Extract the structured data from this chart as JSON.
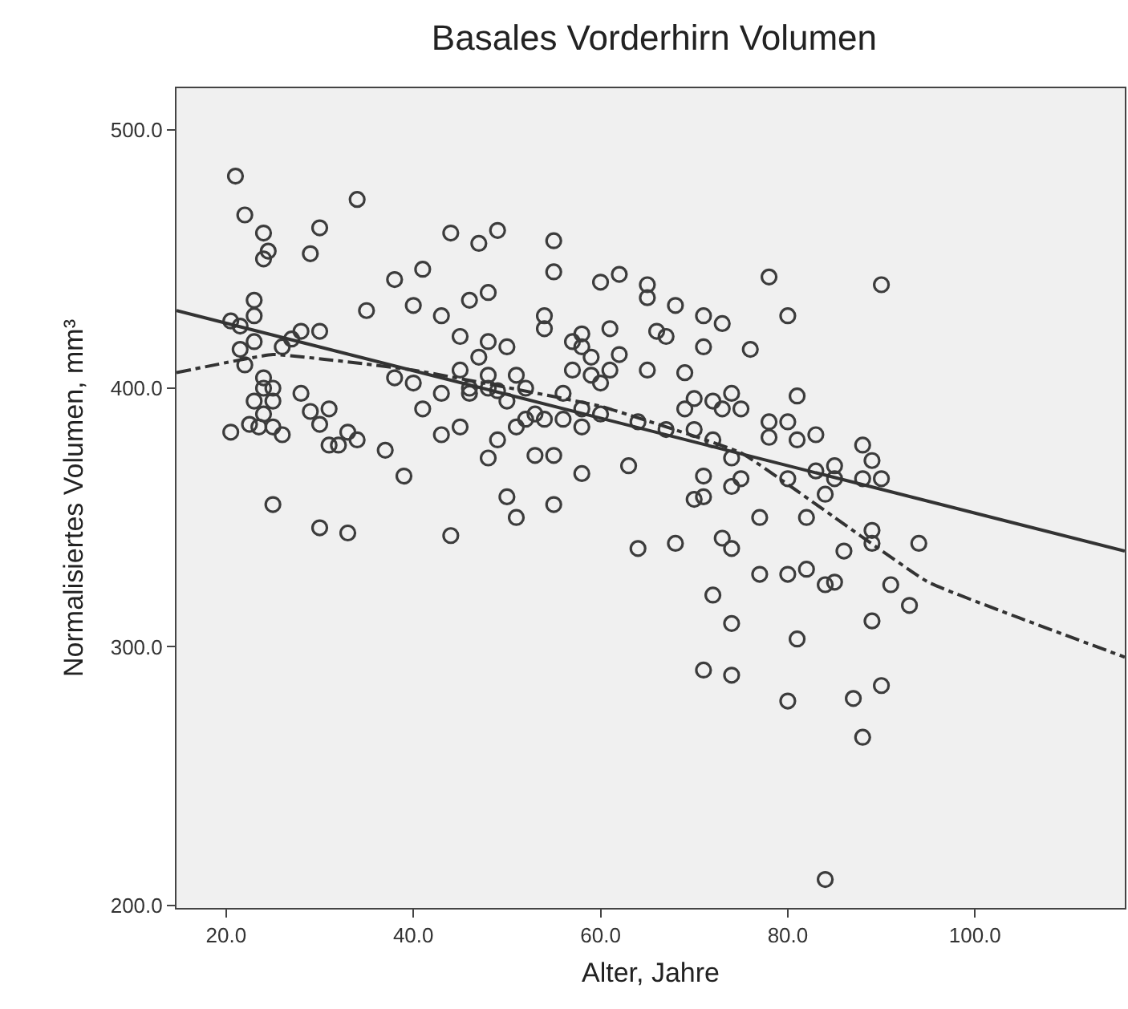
{
  "chart_data": {
    "type": "scatter",
    "title": "Basales Vorderhirn Volumen",
    "xlabel": "Alter, Jahre",
    "ylabel": "Normalisiertes Volumen, mm³",
    "xlim": [
      14.7,
      116
    ],
    "ylim": [
      199,
      516
    ],
    "xticks": [
      {
        "value": 20,
        "label": "20.0"
      },
      {
        "value": 40,
        "label": "40.0"
      },
      {
        "value": 60,
        "label": "60.0"
      },
      {
        "value": 80,
        "label": "80.0"
      },
      {
        "value": 100,
        "label": "100.0"
      }
    ],
    "yticks": [
      {
        "value": 200,
        "label": "200.0"
      },
      {
        "value": 300,
        "label": "300.0"
      },
      {
        "value": 400,
        "label": "400.0"
      },
      {
        "value": 500,
        "label": "500.0"
      }
    ],
    "grid": false,
    "series": [
      {
        "color": "#3c3c3c",
        "marker": "circle",
        "x": [
          20.5,
          20.5,
          21,
          21.5,
          21.5,
          22,
          22,
          22.5,
          23,
          23,
          23,
          23,
          23.5,
          24,
          24,
          24,
          24,
          24,
          24.5,
          25,
          25,
          25,
          25,
          26,
          26,
          27,
          28,
          28,
          29,
          29,
          30,
          30,
          30,
          30,
          31,
          31,
          32,
          33,
          33,
          34,
          34,
          35,
          37,
          38,
          38,
          39,
          40,
          40,
          41,
          41,
          43,
          43,
          43,
          44,
          44,
          45,
          45,
          45,
          46,
          46,
          46,
          47,
          47,
          48,
          48,
          48,
          48,
          48,
          49,
          49,
          49,
          50,
          50,
          50,
          51,
          51,
          51,
          52,
          52,
          53,
          53,
          54,
          54,
          54,
          55,
          55,
          55,
          55,
          56,
          56,
          57,
          57,
          58,
          58,
          58,
          58,
          58,
          59,
          59,
          60,
          60,
          60,
          61,
          61,
          62,
          62,
          63,
          64,
          64,
          65,
          65,
          65,
          66,
          67,
          67,
          68,
          68,
          69,
          69,
          70,
          70,
          70,
          71,
          71,
          71,
          71,
          71,
          72,
          72,
          72,
          73,
          73,
          73,
          74,
          74,
          74,
          74,
          74,
          74,
          75,
          75,
          76,
          77,
          77,
          78,
          78,
          78,
          80,
          80,
          80,
          80,
          80,
          81,
          81,
          81,
          82,
          82,
          83,
          83,
          84,
          84,
          84,
          85,
          85,
          85,
          86,
          87,
          88,
          88,
          88,
          89,
          89,
          89,
          89,
          90,
          90,
          90,
          91,
          93,
          94
        ],
        "values": [
          426,
          383,
          482,
          424,
          415,
          409,
          467,
          386,
          428,
          434,
          418,
          395,
          385,
          450,
          460,
          400,
          404,
          390,
          453,
          395,
          385,
          355,
          400,
          382,
          416,
          419,
          422,
          398,
          452,
          391,
          462,
          422,
          386,
          346,
          378,
          392,
          378,
          383,
          344,
          473,
          380,
          430,
          376,
          442,
          404,
          366,
          432,
          402,
          446,
          392,
          428,
          382,
          398,
          460,
          343,
          420,
          407,
          385,
          434,
          400,
          398,
          456,
          412,
          437,
          418,
          405,
          400,
          373,
          461,
          399,
          380,
          416,
          395,
          358,
          405,
          385,
          350,
          400,
          388,
          390,
          374,
          428,
          423,
          388,
          457,
          445,
          374,
          355,
          398,
          388,
          418,
          407,
          416,
          392,
          421,
          367,
          385,
          412,
          405,
          441,
          402,
          390,
          423,
          407,
          444,
          413,
          370,
          387,
          338,
          440,
          435,
          407,
          422,
          420,
          384,
          432,
          340,
          406,
          392,
          384,
          357,
          396,
          428,
          416,
          366,
          291,
          358,
          380,
          395,
          320,
          425,
          342,
          392,
          398,
          373,
          362,
          338,
          309,
          289,
          392,
          365,
          415,
          350,
          328,
          443,
          387,
          381,
          428,
          387,
          365,
          279,
          328,
          397,
          380,
          303,
          350,
          330,
          382,
          368,
          359,
          324,
          210,
          370,
          365,
          325,
          337,
          280,
          365,
          378,
          265,
          372,
          345,
          310,
          340,
          440,
          365,
          285,
          324,
          316,
          340
        ]
      },
      {
        "type": "line",
        "color": "#333333",
        "line_style": "solid",
        "x": [
          14.7,
          116
        ],
        "values": [
          430,
          337
        ]
      },
      {
        "type": "line",
        "color": "#333333",
        "line_style": "dashed",
        "x": [
          14.7,
          25,
          40,
          60,
          75,
          85,
          95,
          116
        ],
        "values": [
          406,
          413,
          407,
          393,
          375,
          350,
          325,
          296
        ]
      }
    ]
  }
}
